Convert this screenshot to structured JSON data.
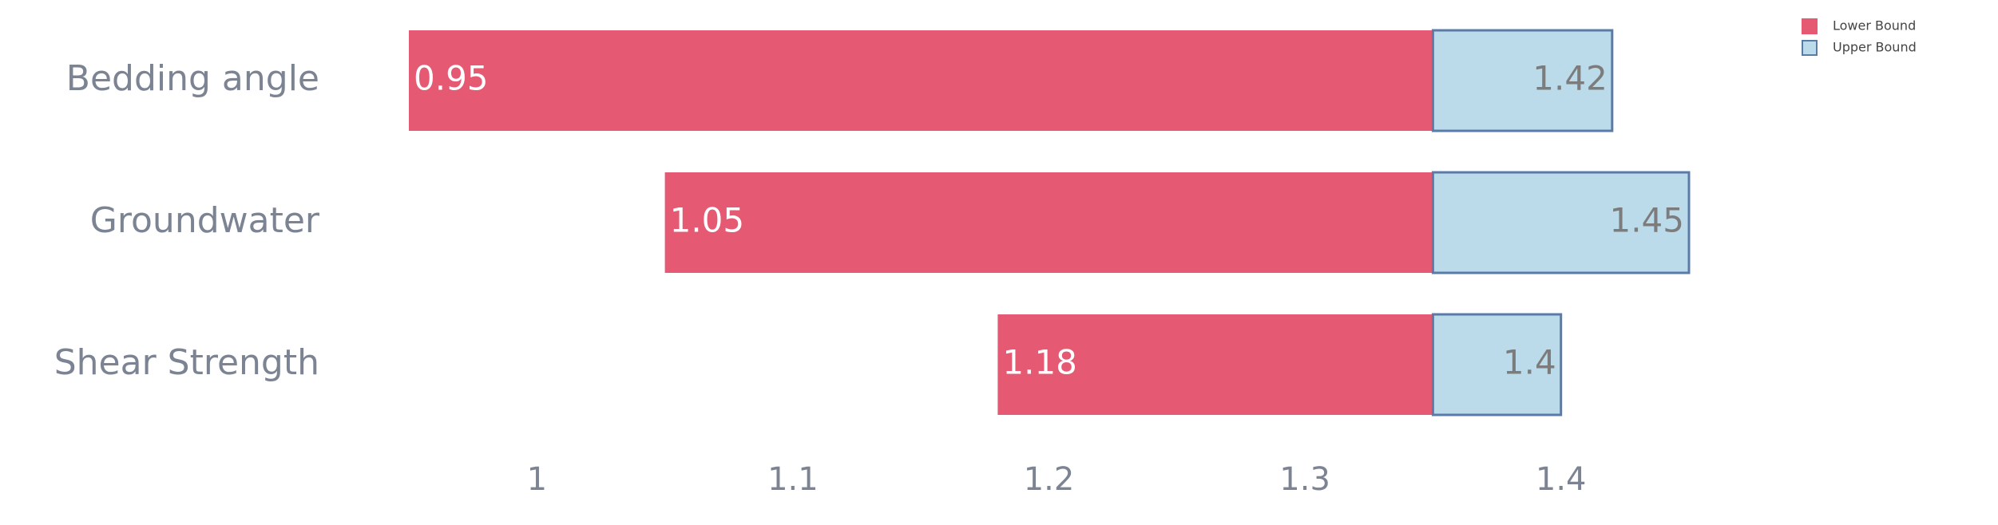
{
  "chart_data": {
    "type": "tornado",
    "categories": [
      "Bedding angle",
      "Groundwater",
      "Shear Strength"
    ],
    "base": 1.35,
    "series": [
      {
        "name": "Lower Bound",
        "color": "#e55a72",
        "values": [
          0.95,
          1.05,
          1.18
        ]
      },
      {
        "name": "Upper Bound",
        "color": "#bcdbea",
        "values": [
          1.42,
          1.45,
          1.4
        ]
      }
    ],
    "xlim": [
      0.95,
      1.45
    ],
    "xticks": [
      1,
      1.1,
      1.2,
      1.3,
      1.4
    ],
    "grid": false,
    "legend": "top-right"
  }
}
